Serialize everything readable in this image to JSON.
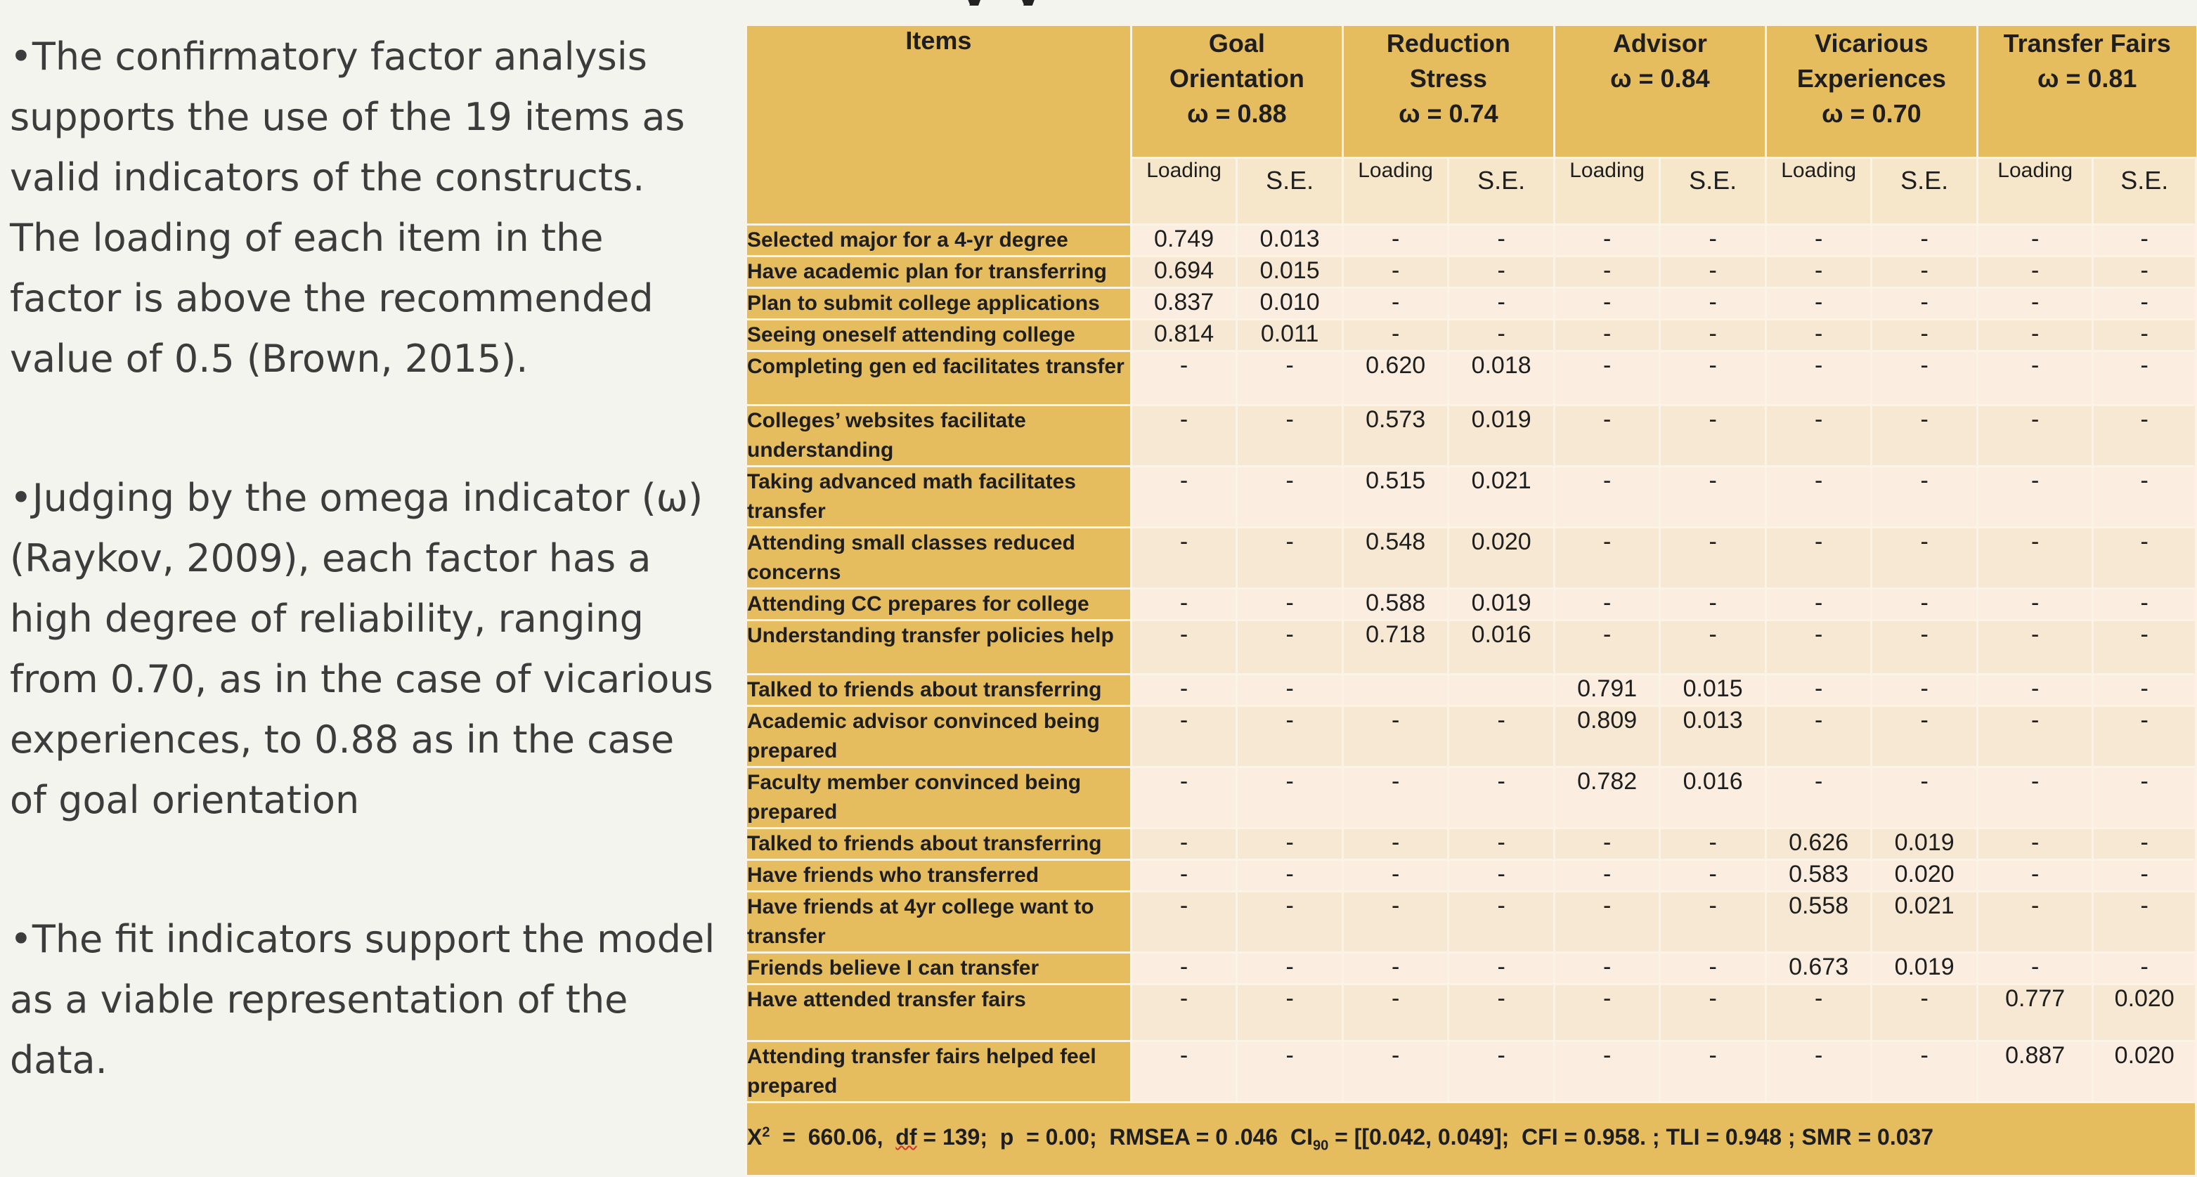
{
  "title_fragment": "y           y",
  "bullets": [
    "•The confirmatory factor analysis supports the use of the 19 items as valid indicators of the constructs. The loading of each item in the factor is above the recommended value of 0.5 (Brown, 2015).",
    "•Judging by the omega indicator (ω) (Raykov, 2009), each factor has a high degree of reliability, ranging from 0.70, as in the case of vicarious experiences, to 0.88 as in the case of goal orientation",
    "•The fit indicators support the model as a viable representation of the data."
  ],
  "table": {
    "items_header": "Items",
    "factors": [
      {
        "name_lines": [
          "Goal",
          "Orientation"
        ],
        "omega": "ω  = 0.88"
      },
      {
        "name_lines": [
          "Reduction",
          "Stress"
        ],
        "omega": "ω  = 0.74"
      },
      {
        "name_lines": [
          "Advisor"
        ],
        "omega": "ω  = 0.84"
      },
      {
        "name_lines": [
          "Vicarious",
          "Experiences"
        ],
        "omega": "ω  = 0.70"
      },
      {
        "name_lines": [
          "Transfer Fairs"
        ],
        "omega": "ω  = 0.81"
      }
    ],
    "sub_loading": "Loading",
    "sub_se": "S.E.",
    "rows": [
      {
        "item": "Selected major for a 4-yr degree",
        "values": [
          "0.749",
          "0.013",
          "-",
          "-",
          "-",
          "-",
          "-",
          "-",
          "-",
          "-"
        ]
      },
      {
        "item": "Have academic plan for transferring",
        "values": [
          "0.694",
          "0.015",
          "-",
          "-",
          "-",
          "-",
          "-",
          "-",
          "-",
          "-"
        ]
      },
      {
        "item": "Plan to submit college applications",
        "values": [
          "0.837",
          "0.010",
          "-",
          "-",
          "-",
          "-",
          "-",
          "-",
          "-",
          "-"
        ]
      },
      {
        "item": "Seeing oneself attending college",
        "values": [
          "0.814",
          "0.011",
          "-",
          "-",
          "-",
          "-",
          "-",
          "-",
          "-",
          "-"
        ]
      },
      {
        "item": "Completing gen ed facilitates transfer",
        "values": [
          "-",
          "-",
          "0.620",
          "0.018",
          "-",
          "-",
          "-",
          "-",
          "-",
          "-"
        ]
      },
      {
        "item": "Colleges’ websites facilitate understanding",
        "values": [
          "-",
          "-",
          "0.573",
          "0.019",
          "-",
          "-",
          "-",
          "-",
          "-",
          "-"
        ]
      },
      {
        "item": "Taking advanced math facilitates transfer",
        "values": [
          "-",
          "-",
          "0.515",
          "0.021",
          "-",
          "-",
          "-",
          "-",
          "-",
          "-"
        ]
      },
      {
        "item": "Attending small classes reduced concerns",
        "values": [
          "-",
          "-",
          "0.548",
          "0.020",
          "-",
          "-",
          "-",
          "-",
          "-",
          "-"
        ]
      },
      {
        "item": "Attending CC prepares for college",
        "values": [
          "-",
          "-",
          "0.588",
          "0.019",
          "-",
          "-",
          "-",
          "-",
          "-",
          "-"
        ]
      },
      {
        "item": "Understanding transfer policies help",
        "values": [
          "-",
          "-",
          "0.718",
          "0.016",
          "-",
          "-",
          "-",
          "-",
          "-",
          "-"
        ]
      },
      {
        "item": "Talked to friends about transferring",
        "values": [
          "-",
          "-",
          "",
          "",
          "0.791",
          "0.015",
          "-",
          "-",
          "-",
          "-"
        ]
      },
      {
        "item": "Academic advisor convinced being prepared",
        "values": [
          "-",
          "-",
          "-",
          "-",
          "0.809",
          "0.013",
          "-",
          "-",
          "-",
          "-"
        ]
      },
      {
        "item": "Faculty member convinced being prepared",
        "values": [
          "-",
          "-",
          "-",
          "-",
          "0.782",
          "0.016",
          "-",
          "-",
          "-",
          "-"
        ]
      },
      {
        "item": "Talked to friends about transferring",
        "values": [
          "-",
          "-",
          "-",
          "-",
          "-",
          "-",
          "0.626",
          "0.019",
          "-",
          "-"
        ]
      },
      {
        "item": "Have friends who transferred",
        "values": [
          "-",
          "-",
          "-",
          "-",
          "-",
          "-",
          "0.583",
          "0.020",
          "-",
          "-"
        ]
      },
      {
        "item": "Have friends at 4yr college want to transfer",
        "values": [
          "-",
          "-",
          "-",
          "-",
          "-",
          "-",
          "0.558",
          "0.021",
          "-",
          "-"
        ]
      },
      {
        "item": "Friends believe I can transfer",
        "values": [
          "-",
          "-",
          "-",
          "-",
          "-",
          "-",
          "0.673",
          "0.019",
          "-",
          "-"
        ]
      },
      {
        "item": "Have attended transfer fairs",
        "values": [
          "-",
          "-",
          "-",
          "-",
          "-",
          "-",
          "-",
          "-",
          "0.777",
          "0.020"
        ]
      },
      {
        "item": "Attending transfer fairs helped feel prepared",
        "values": [
          "-",
          "-",
          "-",
          "-",
          "-",
          "-",
          "-",
          "-",
          "0.887",
          "0.020"
        ]
      }
    ],
    "fit": {
      "chi_label": "X",
      "chi_sup": "2",
      "chi_rest": "  =  660.06,  ",
      "df_label": "df",
      "mid": " = 139;  p  = 0.00;  RMSEA = 0 .046  CI",
      "ci_sub": "90",
      "tail": " = [[0.042, 0.049];  CFI = 0.958. ; TLI = 0.948 ; SMR = 0.037"
    }
  }
}
